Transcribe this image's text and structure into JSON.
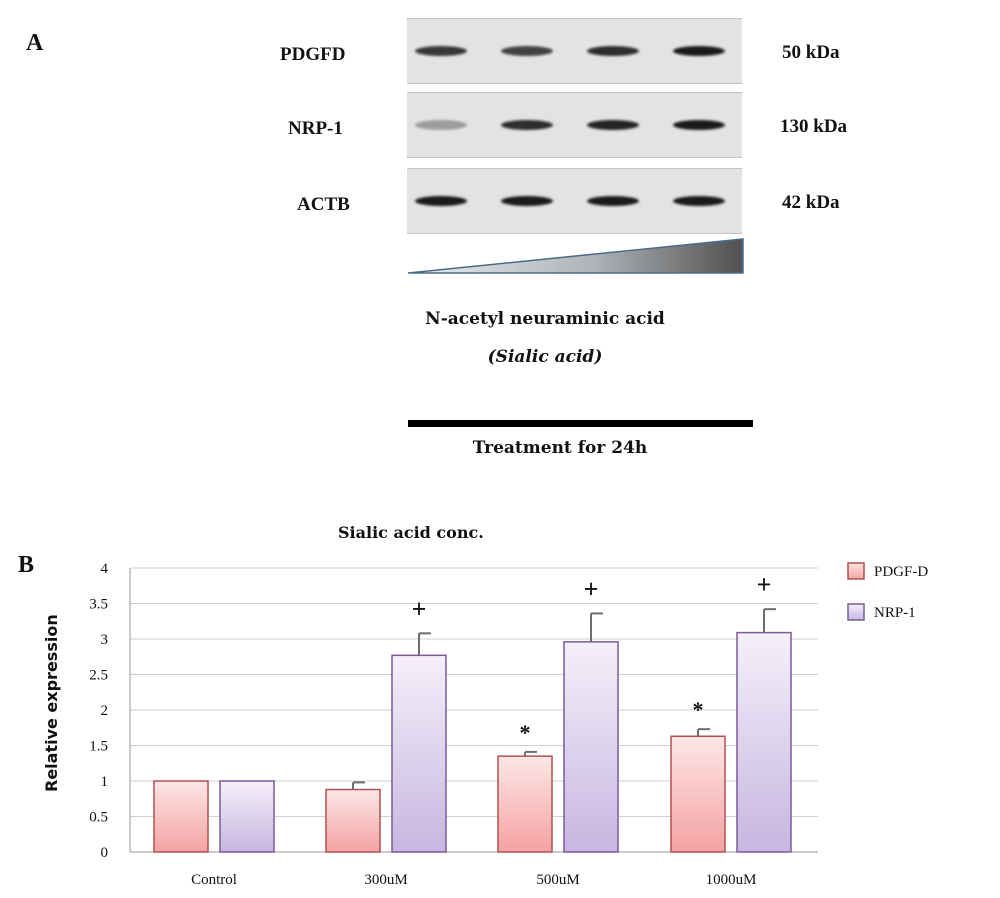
{
  "panel_a": {
    "letter": "A",
    "blots": [
      {
        "protein": "PDGFD",
        "size": "50 kDa",
        "band_intensity": [
          0.85,
          0.8,
          0.9,
          1.0
        ]
      },
      {
        "protein": "NRP-1",
        "size": "130 kDa",
        "band_intensity": [
          0.35,
          0.9,
          0.95,
          1.0
        ]
      },
      {
        "protein": "ACTB",
        "size": "42 kDa",
        "band_intensity": [
          1.0,
          1.0,
          1.0,
          1.0
        ]
      }
    ],
    "treatment_name": "N-acetyl neuraminic acid",
    "treatment_alias": "(Sialic acid)",
    "treatment_duration": "Treatment for 24h"
  },
  "panel_b": {
    "letter": "B"
  },
  "chart_data": {
    "type": "bar",
    "title": "Sialic acid conc.",
    "ylabel": "Relative expression",
    "xlabel": "",
    "categories": [
      "Control",
      "300uM",
      "500uM",
      "1000uM"
    ],
    "ylim": [
      0,
      4
    ],
    "yticks": [
      0,
      0.5,
      1,
      1.5,
      2,
      2.5,
      3,
      3.5,
      4
    ],
    "ytick_labels": [
      "0",
      "0.5",
      "1",
      "1.5",
      "2",
      "2.5",
      "3",
      "3.5",
      "4"
    ],
    "grid": true,
    "legend_position": "top-right",
    "series": [
      {
        "name": "PDGF-D",
        "values": [
          1.0,
          0.88,
          1.35,
          1.63
        ],
        "errors": [
          0.0,
          0.1,
          0.06,
          0.1
        ],
        "markers": [
          "",
          "",
          "*",
          "*"
        ],
        "fill_top": "#fde6e6",
        "fill_bottom": "#f4a2a2",
        "stroke": "#b05050"
      },
      {
        "name": "NRP-1",
        "values": [
          1.0,
          2.77,
          2.96,
          3.09
        ],
        "errors": [
          0.0,
          0.31,
          0.4,
          0.33
        ],
        "markers": [
          "",
          "+",
          "+",
          "+"
        ],
        "fill_top": "#f4f0fa",
        "fill_bottom": "#c7b6e0",
        "stroke": "#7a5a9a"
      }
    ]
  }
}
